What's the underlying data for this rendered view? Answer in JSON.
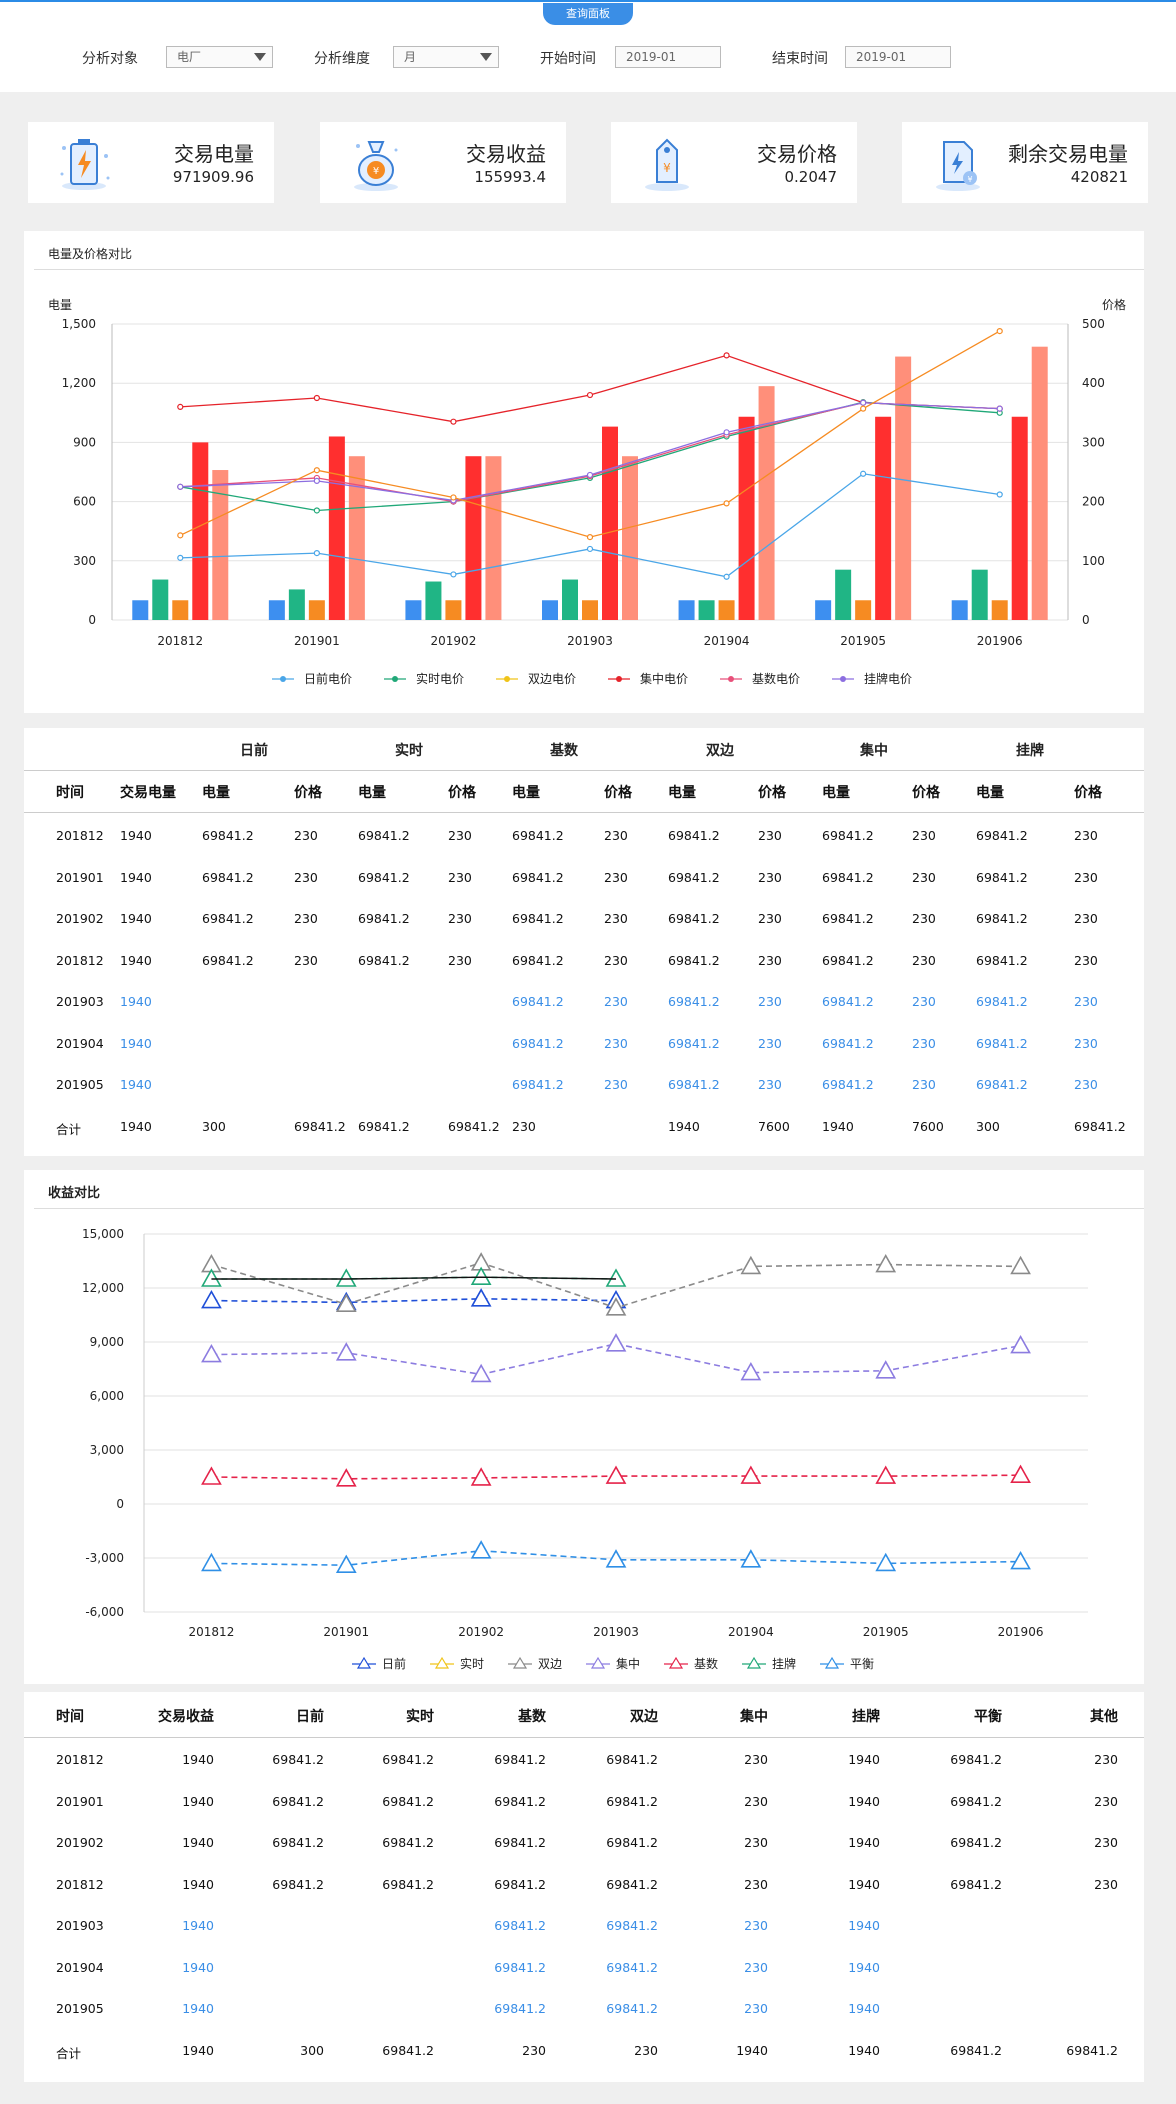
{
  "tab_label": "查询面板",
  "filters": {
    "target_label": "分析对象",
    "target_value": "电厂",
    "dimension_label": "分析维度",
    "dimension_value": "月",
    "start_label": "开始时间",
    "start_value": "2019-01",
    "end_label": "结束时间",
    "end_value": "2019-01"
  },
  "kpis": [
    {
      "label": "交易电量",
      "value": "971909.96",
      "icon": "battery-icon"
    },
    {
      "label": "交易收益",
      "value": "155993.4",
      "icon": "money-bag-icon"
    },
    {
      "label": "交易价格",
      "value": "0.2047",
      "icon": "price-tag-icon"
    },
    {
      "label": "剩余交易电量",
      "value": "420821",
      "icon": "document-power-icon"
    }
  ],
  "colors": {
    "accent": "#3a8ee6",
    "blue_text": "#3a8ee6"
  },
  "chart1": {
    "title": "电量及价格对比",
    "ylabel_left": "电量",
    "ylabel_right": "价格",
    "chart_data": {
      "type": "bar",
      "categories": [
        "201812",
        "201901",
        "201902",
        "201903",
        "201904",
        "201905",
        "201906"
      ],
      "yticks_left": [
        "0",
        "300",
        "600",
        "900",
        "1,200",
        "1,500"
      ],
      "yticks_right": [
        "0",
        "100",
        "200",
        "300",
        "400",
        "500"
      ],
      "ylim_left": [
        0,
        1500
      ],
      "ylim_right": [
        0,
        500
      ],
      "bar_series": [
        {
          "color": "#3d8ff0",
          "values": [
            100,
            100,
            100,
            100,
            100,
            100,
            100
          ]
        },
        {
          "color": "#20b585",
          "values": [
            205,
            155,
            195,
            205,
            100,
            255,
            255
          ]
        },
        {
          "color": "#f68b22",
          "values": [
            100,
            100,
            100,
            100,
            100,
            100,
            100
          ]
        },
        {
          "color": "#ff2f2f",
          "values": [
            900,
            930,
            830,
            980,
            1030,
            1030,
            1030
          ]
        },
        {
          "color": "#ff8f7a",
          "values": [
            760,
            830,
            830,
            830,
            1185,
            1335,
            1385
          ]
        }
      ],
      "line_series": [
        {
          "name": "日前电价",
          "color": "#4aa6e8",
          "values": [
            105,
            113,
            77,
            120,
            73,
            247,
            212
          ]
        },
        {
          "name": "实时电价",
          "color": "#20a878",
          "values": [
            225,
            185,
            200,
            240,
            310,
            368,
            350
          ]
        },
        {
          "name": "双边电价",
          "color": "#f0c419",
          "values": [
            null,
            null,
            null,
            null,
            null,
            null,
            null
          ]
        },
        {
          "name": "集中电价",
          "color": "#e5232a",
          "values": [
            360,
            375,
            335,
            380,
            447,
            367,
            357
          ]
        },
        {
          "name": "基数电价",
          "color": "#e8507a",
          "values": [
            225,
            240,
            200,
            243,
            313,
            367,
            357
          ]
        },
        {
          "name": "挂牌电价",
          "color": "#8c6ee0",
          "values": [
            225,
            235,
            202,
            245,
            317,
            367,
            357
          ]
        },
        {
          "color": "#f68b22",
          "values": [
            143,
            253,
            207,
            140,
            197,
            357,
            488
          ]
        }
      ]
    }
  },
  "table1": {
    "group_headers": [
      "日前",
      "实时",
      "基数",
      "双边",
      "集中",
      "挂牌"
    ],
    "headers": [
      "时间",
      "交易电量",
      "电量",
      "价格",
      "电量",
      "价格",
      "电量",
      "价格",
      "电量",
      "价格",
      "电量",
      "价格",
      "电量",
      "价格"
    ],
    "rows": [
      {
        "blue": false,
        "cells": [
          "201812",
          "1940",
          "69841.2",
          "230",
          "69841.2",
          "230",
          "69841.2",
          "230",
          "69841.2",
          "230",
          "69841.2",
          "230",
          "69841.2",
          "230"
        ]
      },
      {
        "blue": false,
        "cells": [
          "201901",
          "1940",
          "69841.2",
          "230",
          "69841.2",
          "230",
          "69841.2",
          "230",
          "69841.2",
          "230",
          "69841.2",
          "230",
          "69841.2",
          "230"
        ]
      },
      {
        "blue": false,
        "cells": [
          "201902",
          "1940",
          "69841.2",
          "230",
          "69841.2",
          "230",
          "69841.2",
          "230",
          "69841.2",
          "230",
          "69841.2",
          "230",
          "69841.2",
          "230"
        ]
      },
      {
        "blue": false,
        "cells": [
          "201812",
          "1940",
          "69841.2",
          "230",
          "69841.2",
          "230",
          "69841.2",
          "230",
          "69841.2",
          "230",
          "69841.2",
          "230",
          "69841.2",
          "230"
        ]
      },
      {
        "blue": true,
        "cells": [
          "201903",
          "1940",
          "",
          "",
          "",
          "",
          "69841.2",
          "230",
          "69841.2",
          "230",
          "69841.2",
          "230",
          "69841.2",
          "230"
        ]
      },
      {
        "blue": true,
        "cells": [
          "201904",
          "1940",
          "",
          "",
          "",
          "",
          "69841.2",
          "230",
          "69841.2",
          "230",
          "69841.2",
          "230",
          "69841.2",
          "230"
        ]
      },
      {
        "blue": true,
        "cells": [
          "201905",
          "1940",
          "",
          "",
          "",
          "",
          "69841.2",
          "230",
          "69841.2",
          "230",
          "69841.2",
          "230",
          "69841.2",
          "230"
        ]
      },
      {
        "blue": false,
        "cells": [
          "合计",
          "1940",
          "300",
          "69841.2",
          "69841.2",
          "69841.2",
          "230",
          "",
          "1940",
          "7600",
          "1940",
          "7600",
          "300",
          "69841.2"
        ]
      }
    ]
  },
  "chart2": {
    "title": "收益对比",
    "chart_data": {
      "type": "line",
      "categories": [
        "201812",
        "201901",
        "201902",
        "201903",
        "201904",
        "201905",
        "201906"
      ],
      "yticks": [
        "15,000",
        "12,000",
        "9,000",
        "6,000",
        "3,000",
        "0",
        "-3,000",
        "-6,000"
      ],
      "ylim": [
        -6000,
        15000
      ],
      "series": [
        {
          "name": "日前",
          "color": "#1f4fd8",
          "values": [
            11300,
            11200,
            11400,
            11300,
            null,
            null,
            null
          ]
        },
        {
          "name": "实时",
          "color": "#f0c419",
          "values": [
            null,
            null,
            null,
            null,
            null,
            null,
            null
          ]
        },
        {
          "name": "双边",
          "color": "#8a8a8a",
          "values": [
            13300,
            11100,
            13400,
            10900,
            13200,
            13300,
            13200
          ]
        },
        {
          "name": "集中",
          "color": "#8c7ce0",
          "values": [
            8300,
            8400,
            7200,
            8900,
            7300,
            7400,
            8800
          ]
        },
        {
          "name": "基数",
          "color": "#e5234a",
          "values": [
            1500,
            1400,
            1450,
            1550,
            1550,
            1550,
            1600
          ]
        },
        {
          "name": "挂牌",
          "color": "#20a878",
          "values": [
            12500,
            12500,
            12600,
            12500,
            null,
            null,
            null
          ]
        },
        {
          "name": "平衡",
          "color": "#2f8fe6",
          "values": [
            -3300,
            -3400,
            -2600,
            -3100,
            -3100,
            -3300,
            -3200
          ]
        },
        {
          "color": "#111111",
          "values": [
            12500,
            12500,
            12600,
            12500,
            null,
            null,
            null
          ]
        }
      ]
    }
  },
  "table2": {
    "headers": [
      "时间",
      "交易收益",
      "日前",
      "实时",
      "基数",
      "双边",
      "集中",
      "挂牌",
      "平衡",
      "其他"
    ],
    "rows": [
      {
        "blue": false,
        "cells": [
          "201812",
          "1940",
          "69841.2",
          "69841.2",
          "69841.2",
          "69841.2",
          "230",
          "1940",
          "69841.2",
          "230"
        ]
      },
      {
        "blue": false,
        "cells": [
          "201901",
          "1940",
          "69841.2",
          "69841.2",
          "69841.2",
          "69841.2",
          "230",
          "1940",
          "69841.2",
          "230"
        ]
      },
      {
        "blue": false,
        "cells": [
          "201902",
          "1940",
          "69841.2",
          "69841.2",
          "69841.2",
          "69841.2",
          "230",
          "1940",
          "69841.2",
          "230"
        ]
      },
      {
        "blue": false,
        "cells": [
          "201812",
          "1940",
          "69841.2",
          "69841.2",
          "69841.2",
          "69841.2",
          "230",
          "1940",
          "69841.2",
          "230"
        ]
      },
      {
        "blue": true,
        "cells": [
          "201903",
          "1940",
          "",
          "",
          "69841.2",
          "69841.2",
          "230",
          "1940",
          "",
          ""
        ]
      },
      {
        "blue": true,
        "cells": [
          "201904",
          "1940",
          "",
          "",
          "69841.2",
          "69841.2",
          "230",
          "1940",
          "",
          ""
        ]
      },
      {
        "blue": true,
        "cells": [
          "201905",
          "1940",
          "",
          "",
          "69841.2",
          "69841.2",
          "230",
          "1940",
          "",
          ""
        ]
      },
      {
        "blue": false,
        "cells": [
          "合计",
          "1940",
          "300",
          "69841.2",
          "230",
          "230",
          "1940",
          "1940",
          "69841.2",
          "69841.2"
        ]
      }
    ]
  }
}
